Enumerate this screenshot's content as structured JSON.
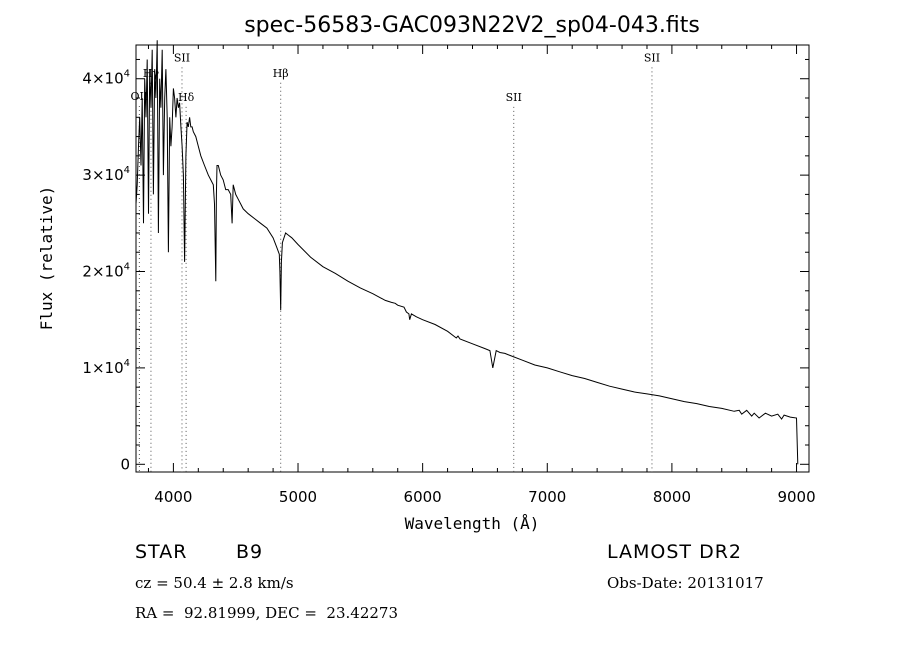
{
  "chart_data": {
    "type": "line",
    "title": "spec-56583-GAC093N22V2_sp04-043.fits",
    "xlabel": "Wavelength (Å)",
    "ylabel": "Flux (relative)",
    "xlim": [
      3700,
      9100
    ],
    "ylim": [
      -800,
      43500
    ],
    "x_ticks": [
      4000,
      5000,
      6000,
      7000,
      8000,
      9000
    ],
    "x_tick_labels": [
      "4000",
      "5000",
      "6000",
      "7000",
      "8000",
      "9000"
    ],
    "y_ticks": [
      0,
      10000,
      20000,
      30000,
      40000
    ],
    "y_tick_labels": [
      {
        "base": "0",
        "exp": ""
      },
      {
        "base": "1×10",
        "exp": "4"
      },
      {
        "base": "2×10",
        "exp": "4"
      },
      {
        "base": "3×10",
        "exp": "4"
      },
      {
        "base": "4×10",
        "exp": "4"
      }
    ],
    "grid": false,
    "line_markers": [
      {
        "label": "OII",
        "x": 3727,
        "label_y": 37800
      },
      {
        "label": "Hγ",
        "x": 3820,
        "label_y": 40200
      },
      {
        "label": "SII",
        "x": 4069,
        "label_y": 41800
      },
      {
        "label": "Hδ",
        "x": 4102,
        "label_y": 37700
      },
      {
        "label": "Hβ",
        "x": 4861,
        "label_y": 40200
      },
      {
        "label": "SII",
        "x": 6731,
        "label_y": 37700
      },
      {
        "label": "SII",
        "x": 7840,
        "label_y": 41800
      }
    ],
    "series": [
      {
        "x": [
          3700,
          3710,
          3720,
          3730,
          3740,
          3750,
          3760,
          3770,
          3780,
          3790,
          3800,
          3810,
          3820,
          3830,
          3840,
          3850,
          3860,
          3870,
          3880,
          3890,
          3900,
          3910,
          3920,
          3930,
          3940,
          3950,
          3960,
          3970,
          3980,
          3990,
          4000,
          4010,
          4020,
          4030,
          4040,
          4050,
          4060,
          4070,
          4080,
          4090,
          4100,
          4110,
          4120,
          4130,
          4140,
          4150,
          4160,
          4180,
          4200,
          4220,
          4250,
          4280,
          4300,
          4320,
          4330,
          4340,
          4345,
          4350,
          4360,
          4380,
          4400,
          4420,
          4440,
          4460,
          4471,
          4480,
          4500,
          4520,
          4540,
          4560,
          4600,
          4650,
          4700,
          4750,
          4800,
          4830,
          4850,
          4855,
          4861,
          4867,
          4875,
          4900,
          4920,
          4950,
          5000,
          5100,
          5200,
          5300,
          5400,
          5500,
          5600,
          5700,
          5750,
          5780,
          5800,
          5850,
          5870,
          5890,
          5896,
          5910,
          5950,
          6000,
          6100,
          6200,
          6270,
          6284,
          6300,
          6400,
          6500,
          6540,
          6563,
          6590,
          6620,
          6660,
          6700,
          6800,
          6900,
          7000,
          7100,
          7200,
          7300,
          7400,
          7500,
          7600,
          7700,
          7800,
          7900,
          8000,
          8100,
          8200,
          8300,
          8400,
          8500,
          8540,
          8560,
          8600,
          8640,
          8660,
          8700,
          8750,
          8800,
          8850,
          8880,
          8900,
          8950,
          9000,
          9010
        ],
        "y": [
          27000,
          29000,
          33000,
          36000,
          31000,
          38000,
          25000,
          40000,
          36000,
          42000,
          26000,
          41000,
          37000,
          43000,
          28000,
          41000,
          38000,
          44000,
          24000,
          40000,
          37000,
          43000,
          30000,
          38000,
          41000,
          36000,
          22000,
          36000,
          33000,
          35000,
          39000,
          38000,
          36000,
          38000,
          37000,
          37500,
          35000,
          33000,
          30000,
          21000,
          32000,
          35500,
          35000,
          36000,
          35000,
          35000,
          34500,
          34000,
          33000,
          32000,
          31000,
          30000,
          29500,
          29000,
          27000,
          19000,
          28000,
          31000,
          31000,
          30000,
          29500,
          28500,
          28500,
          28000,
          25000,
          29000,
          28000,
          27500,
          27000,
          26500,
          26000,
          25500,
          25000,
          24500,
          23500,
          22500,
          21800,
          20000,
          16000,
          21000,
          23000,
          24000,
          23800,
          23500,
          22800,
          21500,
          20500,
          19800,
          19000,
          18300,
          17700,
          17000,
          16800,
          16700,
          16500,
          16300,
          15800,
          15600,
          15000,
          15600,
          15300,
          15000,
          14500,
          13800,
          13100,
          13300,
          13000,
          12500,
          12000,
          11800,
          10000,
          11800,
          11600,
          11500,
          11300,
          10800,
          10300,
          10000,
          9600,
          9200,
          8900,
          8500,
          8100,
          7800,
          7500,
          7300,
          7100,
          6800,
          6500,
          6300,
          6000,
          5800,
          5500,
          5600,
          5200,
          5600,
          5000,
          5300,
          4800,
          5300,
          5000,
          5200,
          4700,
          5100,
          4900,
          4800,
          0
        ]
      }
    ]
  },
  "info": {
    "object_class": "STAR",
    "subclass": "B9",
    "survey": "LAMOST DR2",
    "cz": "cz = 50.4 ± 2.8 km/s",
    "obs_date": "Obs-Date: 20131017",
    "coords": "RA =  92.81999, DEC =  23.42273"
  }
}
